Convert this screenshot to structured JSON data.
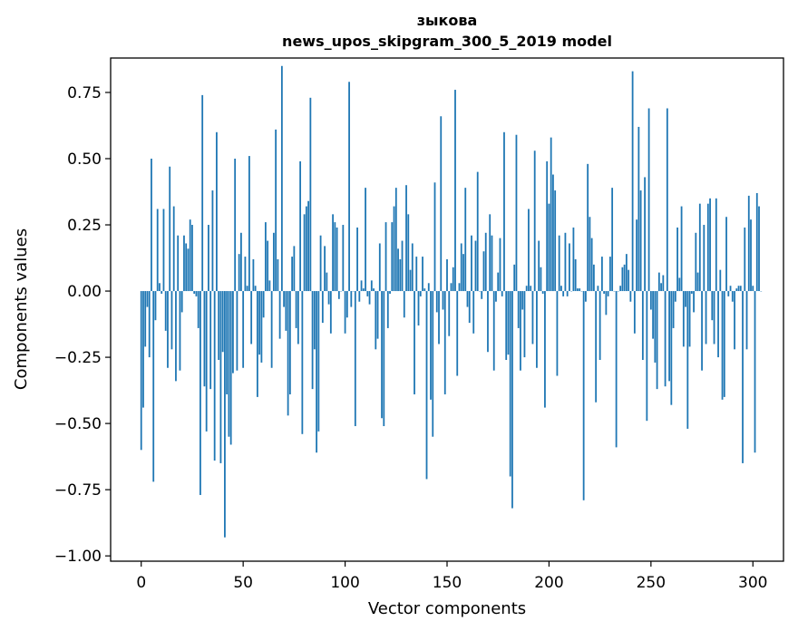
{
  "chart_data": {
    "type": "bar",
    "title": "зыкова",
    "subtitle": "news_upos_skipgram_300_5_2019 model",
    "xlabel": "Vector components",
    "ylabel": "Components values",
    "xlim": [
      -15,
      315
    ],
    "ylim": [
      -1.02,
      0.88
    ],
    "xticks": [
      0,
      50,
      100,
      150,
      200,
      250,
      300
    ],
    "yticks": [
      0.75,
      0.5,
      0.25,
      0.0,
      -0.25,
      -0.5,
      -0.75,
      -1.0
    ],
    "ytick_labels": [
      "0.75",
      "0.50",
      "0.25",
      "0.00",
      "−0.25",
      "−0.50",
      "−0.75",
      "−1.00"
    ],
    "bar_color": "#1f77b4",
    "values": [
      -0.6,
      -0.44,
      -0.21,
      -0.06,
      -0.25,
      0.5,
      -0.72,
      -0.11,
      0.31,
      0.03,
      -0.01,
      0.31,
      -0.15,
      -0.29,
      0.47,
      -0.22,
      0.32,
      -0.34,
      0.21,
      -0.3,
      -0.08,
      0.21,
      0.18,
      0.16,
      0.27,
      0.25,
      -0.01,
      -0.02,
      -0.14,
      -0.77,
      0.74,
      -0.36,
      -0.53,
      0.25,
      -0.37,
      0.38,
      -0.64,
      0.6,
      -0.26,
      -0.65,
      -0.23,
      -0.93,
      -0.39,
      -0.55,
      -0.58,
      -0.31,
      0.5,
      -0.3,
      0.14,
      0.22,
      -0.29,
      0.13,
      0.02,
      0.51,
      -0.2,
      0.12,
      0.02,
      -0.4,
      -0.24,
      -0.27,
      -0.1,
      0.26,
      0.19,
      0.04,
      -0.29,
      0.22,
      0.61,
      0.12,
      -0.18,
      0.85,
      -0.06,
      -0.15,
      -0.47,
      -0.39,
      0.13,
      0.17,
      -0.14,
      -0.2,
      0.49,
      -0.54,
      0.29,
      0.32,
      0.34,
      0.73,
      -0.37,
      -0.22,
      -0.61,
      -0.53,
      0.21,
      -0.12,
      0.17,
      0.07,
      -0.05,
      -0.16,
      0.29,
      0.26,
      0.24,
      -0.03,
      0.0,
      0.25,
      -0.16,
      -0.1,
      0.79,
      -0.06,
      0.0,
      -0.51,
      0.24,
      -0.04,
      0.04,
      0.01,
      0.39,
      -0.02,
      -0.05,
      0.04,
      0.01,
      -0.22,
      -0.18,
      0.18,
      -0.48,
      -0.51,
      0.26,
      -0.14,
      -0.01,
      0.26,
      0.32,
      0.39,
      0.16,
      0.12,
      0.19,
      -0.1,
      0.4,
      0.29,
      0.08,
      0.18,
      -0.39,
      0.13,
      -0.13,
      -0.02,
      0.13,
      0.01,
      -0.71,
      0.03,
      -0.41,
      -0.55,
      0.41,
      -0.08,
      -0.2,
      0.66,
      -0.07,
      -0.39,
      0.12,
      -0.17,
      0.03,
      0.09,
      0.76,
      -0.32,
      0.03,
      0.18,
      0.14,
      0.39,
      -0.06,
      -0.12,
      0.21,
      -0.16,
      0.19,
      0.45,
      0.0,
      -0.03,
      0.15,
      0.22,
      -0.23,
      0.29,
      0.21,
      -0.3,
      -0.04,
      0.07,
      0.2,
      -0.02,
      0.6,
      -0.26,
      -0.24,
      -0.7,
      -0.82,
      0.1,
      0.59,
      -0.14,
      -0.3,
      -0.07,
      -0.25,
      0.02,
      0.31,
      0.02,
      -0.2,
      0.53,
      -0.29,
      0.19,
      0.09,
      -0.01,
      -0.44,
      0.49,
      0.33,
      0.58,
      0.44,
      0.38,
      -0.32,
      0.21,
      0.02,
      -0.02,
      0.22,
      -0.02,
      0.18,
      0.0,
      0.24,
      0.12,
      0.01,
      0.01,
      0.0,
      -0.79,
      -0.04,
      0.48,
      0.28,
      0.2,
      0.1,
      -0.42,
      0.02,
      -0.26,
      0.13,
      -0.01,
      -0.09,
      -0.02,
      0.13,
      0.39,
      0.0,
      -0.59,
      0.0,
      0.02,
      0.09,
      0.1,
      0.14,
      0.08,
      -0.04,
      0.83,
      -0.16,
      0.27,
      0.62,
      0.38,
      -0.26,
      0.43,
      -0.49,
      0.69,
      -0.07,
      -0.18,
      -0.27,
      -0.37,
      0.07,
      0.03,
      0.06,
      -0.36,
      0.69,
      -0.34,
      -0.43,
      -0.14,
      -0.04,
      0.24,
      0.05,
      0.32,
      -0.21,
      -0.06,
      -0.52,
      -0.21,
      -0.01,
      -0.08,
      0.22,
      0.07,
      0.33,
      -0.3,
      0.25,
      -0.2,
      0.33,
      0.35,
      -0.11,
      -0.2,
      0.35,
      -0.25,
      0.08,
      -0.41,
      -0.4,
      0.28,
      -0.02,
      0.02,
      -0.04,
      -0.22,
      0.01,
      0.02,
      0.02,
      -0.65,
      0.24,
      -0.22,
      0.36,
      0.27,
      0.02,
      -0.61,
      0.37,
      0.32,
      0.0
    ]
  }
}
